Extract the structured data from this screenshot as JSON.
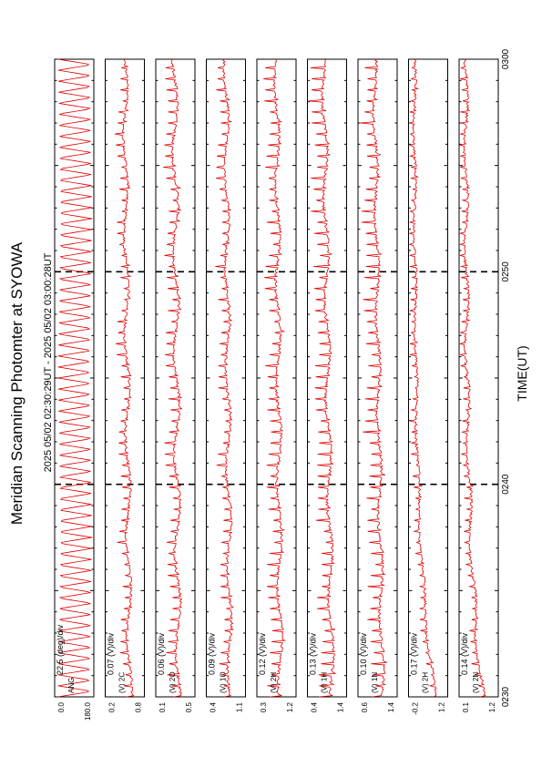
{
  "header": {
    "title": "Meridian Scanning Photomter at SYOWA",
    "subtitle": "2025 05/02 02:30:29UT - 2025 05/02 03:00:28UT"
  },
  "colors": {
    "trace": "#e00000",
    "axis": "#000000",
    "background": "#ffffff"
  },
  "chart_data": {
    "type": "line",
    "orientation": "rotated-90-ccw",
    "xlabel": "TIME(UT)",
    "x_ticks": [
      "0230",
      "0240",
      "0250",
      "0300"
    ],
    "xlim": [
      "0230",
      "0300"
    ],
    "grid": false,
    "panels": [
      {
        "name": "ANG",
        "scale": "22.5 (deg)/div",
        "ytick_top": "180.0",
        "ytick_bottom": "0.0",
        "ylim": [
          0,
          180
        ],
        "shape": "sawtooth",
        "base": 0.5,
        "trend": 0.0,
        "amp": 0.5,
        "spikes": 0.0
      },
      {
        "name": "(V) 2C",
        "scale": "0.07 (V)/div",
        "ytick_top": "0.8",
        "ytick_bottom": "0.2",
        "ylim": [
          0.2,
          0.8
        ],
        "shape": "wave",
        "base": 0.62,
        "trend": -0.12,
        "amp": 0.06,
        "spikes": 0.18
      },
      {
        "name": "(V) 2O",
        "scale": "0.06 (V)/div",
        "ytick_top": "0.5",
        "ytick_bottom": "0.1",
        "ylim": [
          0.1,
          0.5
        ],
        "shape": "wave",
        "base": 0.58,
        "trend": -0.1,
        "amp": 0.07,
        "spikes": 0.22
      },
      {
        "name": "(V) 1O",
        "scale": "0.09 (V)/div",
        "ytick_top": "1.1",
        "ytick_bottom": "0.4",
        "ylim": [
          0.4,
          1.1
        ],
        "shape": "wave",
        "base": 0.6,
        "trend": -0.1,
        "amp": 0.06,
        "spikes": 0.2
      },
      {
        "name": "(V) 2H",
        "scale": "0.12 (V)/div",
        "ytick_top": "1.2",
        "ytick_bottom": "0.3",
        "ylim": [
          0.3,
          1.2
        ],
        "shape": "wave",
        "base": 0.6,
        "trend": -0.1,
        "amp": 0.06,
        "spikes": 0.25
      },
      {
        "name": "(V) 1H",
        "scale": "0.13 (V)/div",
        "ytick_top": "1.4",
        "ytick_bottom": "0.4",
        "ylim": [
          0.4,
          1.4
        ],
        "shape": "wave",
        "base": 0.62,
        "trend": -0.2,
        "amp": 0.06,
        "spikes": 0.3
      },
      {
        "name": "(V) 1N",
        "scale": "0.10 (V)/div",
        "ytick_top": "1.4",
        "ytick_bottom": "0.6",
        "ylim": [
          0.6,
          1.4
        ],
        "shape": "wave",
        "base": 0.62,
        "trend": -0.2,
        "amp": 0.05,
        "spikes": 0.3
      },
      {
        "name": "(V) 2H",
        "scale": "0.17 (V)/div",
        "ytick_top": "1.2",
        "ytick_bottom": "-0.2",
        "ylim": [
          -0.2,
          1.2
        ],
        "shape": "decay",
        "base": 0.7,
        "trend": -0.55,
        "amp": 0.03,
        "spikes": 0.12
      },
      {
        "name": "(V) 2N",
        "scale": "0.14 (V)/div",
        "ytick_top": "1.2",
        "ytick_bottom": "0.1",
        "ylim": [
          0.1,
          1.2
        ],
        "shape": "decay",
        "base": 0.62,
        "trend": -0.45,
        "amp": 0.05,
        "spikes": 0.15
      }
    ]
  }
}
